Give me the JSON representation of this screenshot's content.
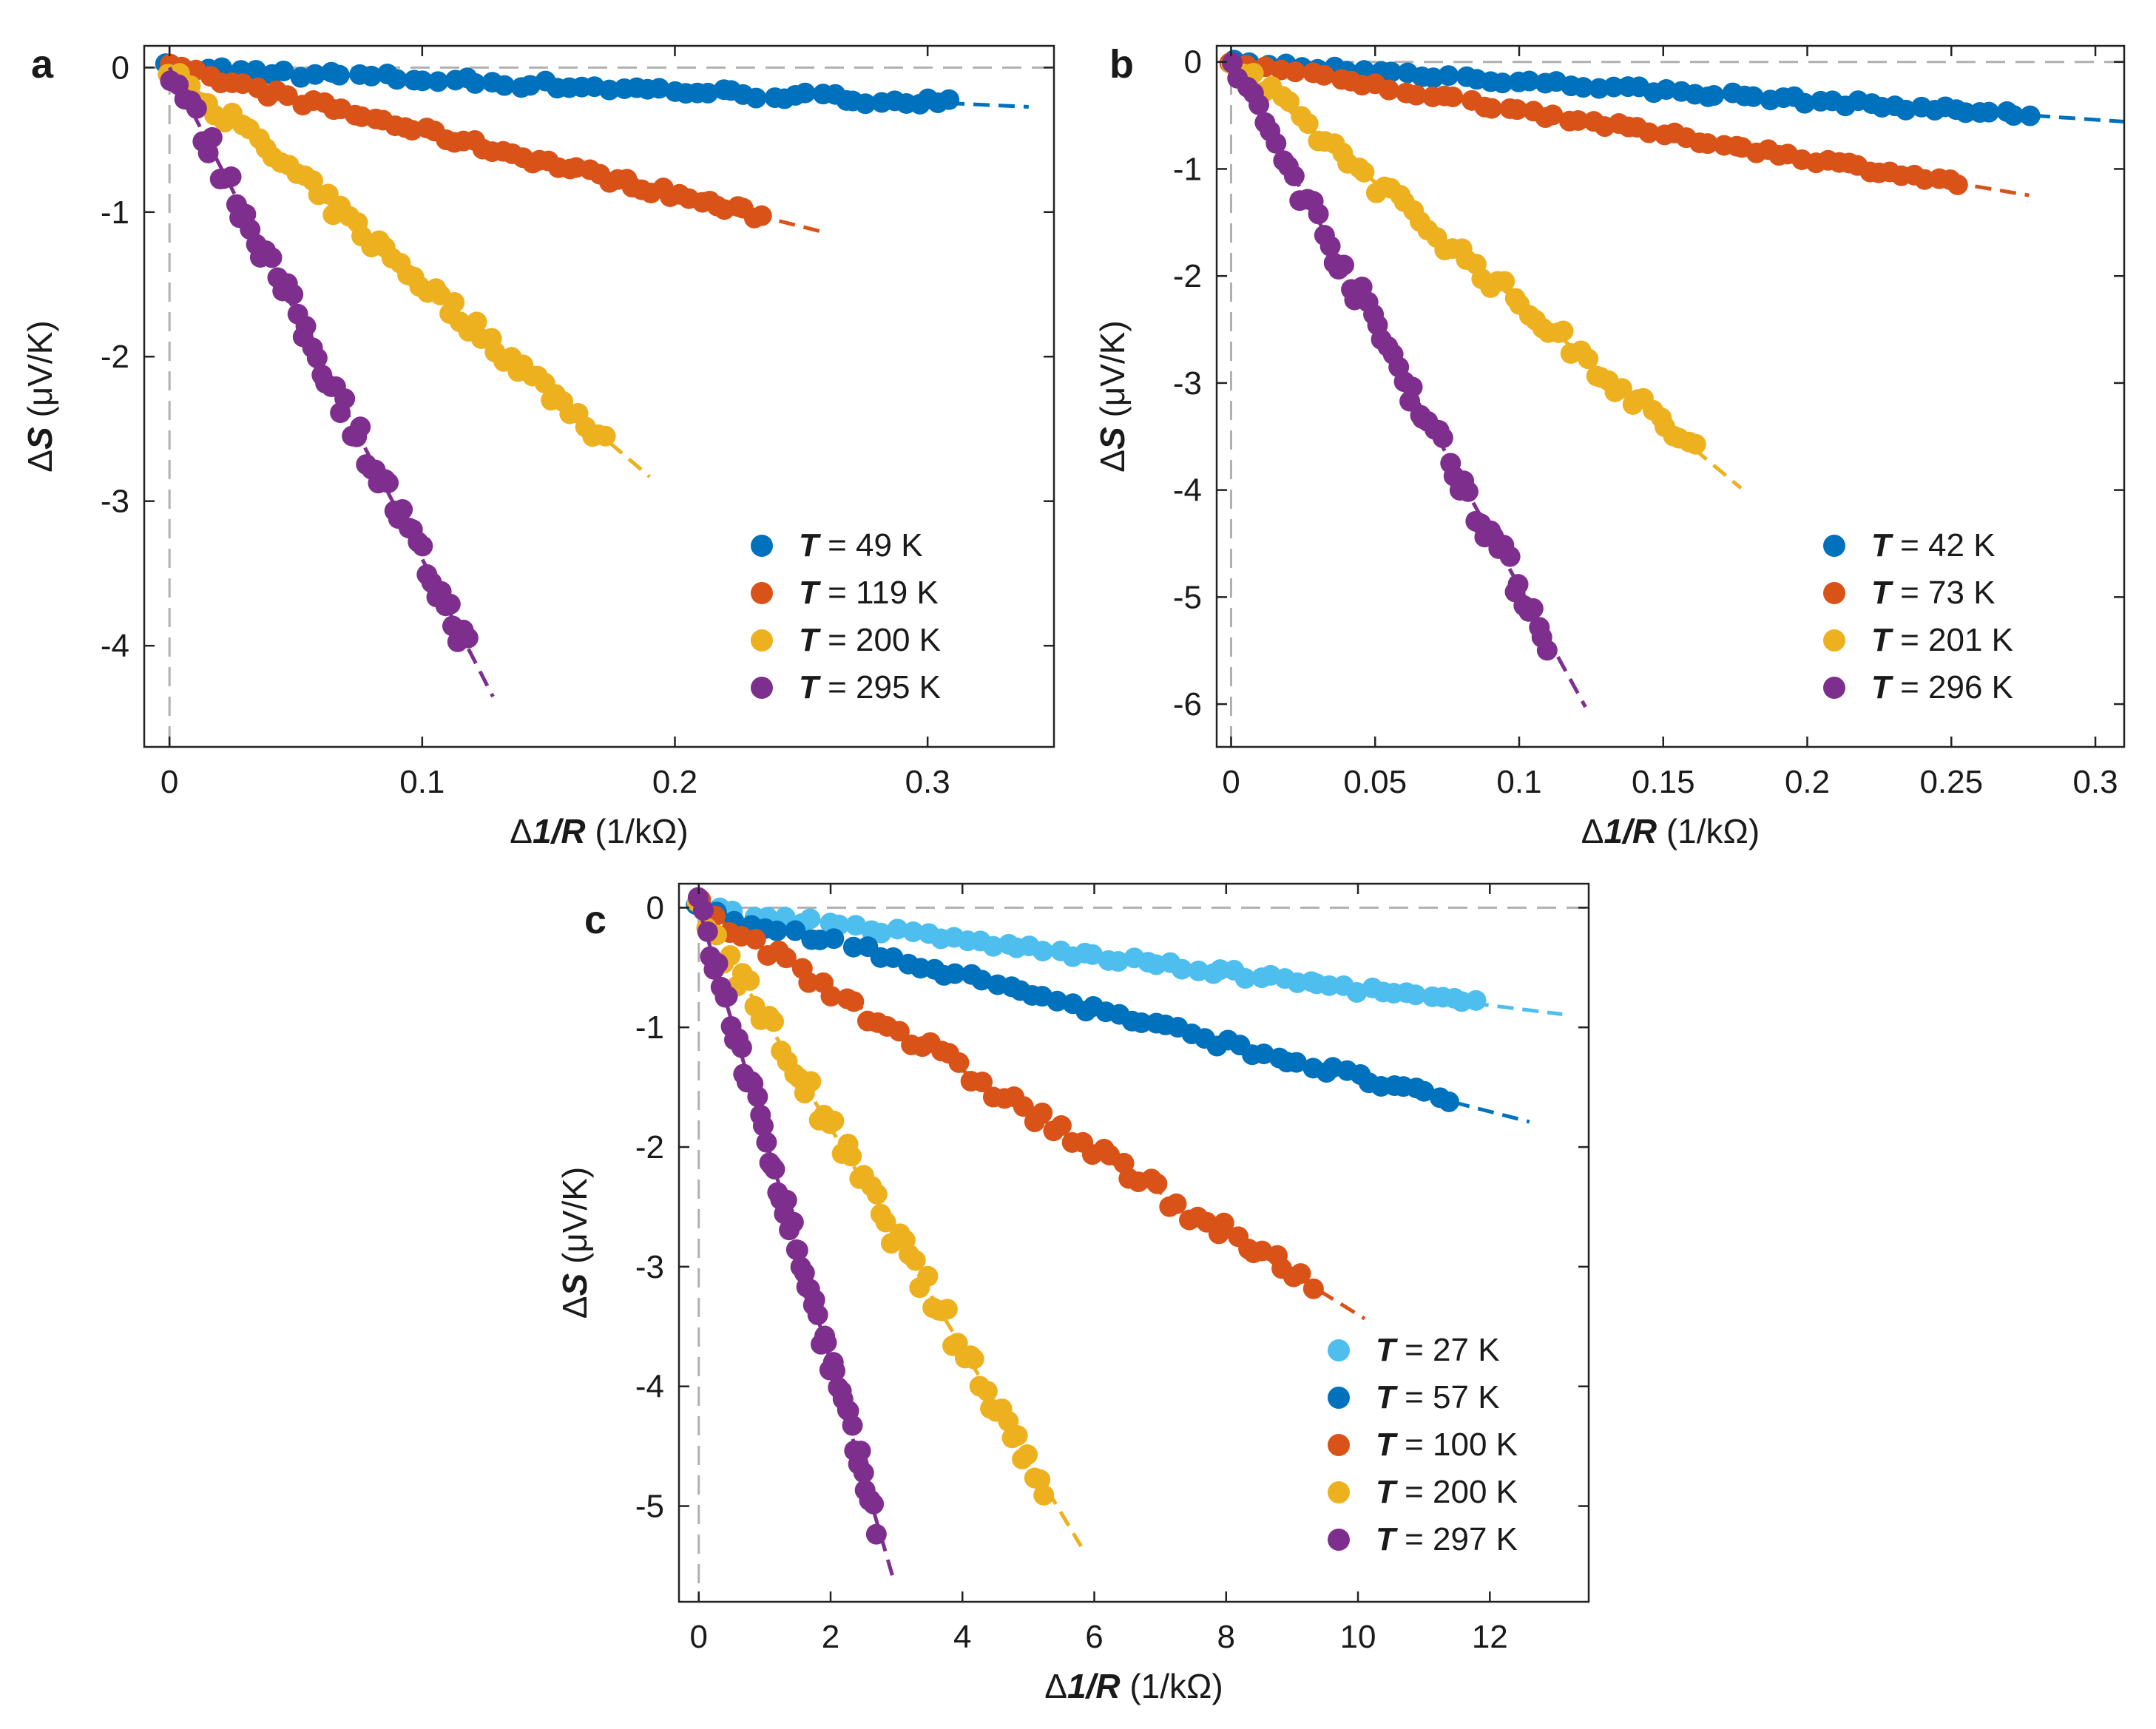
{
  "colors": {
    "light_blue": "#4DBEEE",
    "blue": "#0072BD",
    "orange": "#D95319",
    "yellow": "#EDB120",
    "purple": "#7E2F8E",
    "ref_line": "#b0b0b0"
  },
  "chart_data": [
    {
      "panel": "a",
      "type": "scatter",
      "xlabel": {
        "prefix": "Δ",
        "bold": "1/R",
        "unit": " (1/kΩ)"
      },
      "ylabel": {
        "prefix": "Δ",
        "bold": "S",
        "unit": " (μV/K)"
      },
      "xlim": [
        -0.01,
        0.35
      ],
      "ylim": [
        -4.7,
        0.15
      ],
      "xticks": [
        0,
        0.1,
        0.2,
        0.3
      ],
      "xtick_labels": [
        "0",
        "0.1",
        "0.2",
        "0.3"
      ],
      "yticks": [
        0,
        -1,
        -2,
        -3,
        -4
      ],
      "ytick_labels": [
        "0",
        "-1",
        "-2",
        "-3",
        "-4"
      ],
      "series": [
        {
          "label": "= 49 K",
          "color_key": "blue",
          "slope": -0.8,
          "fit_xmax": 0.34,
          "xmax": 0.31
        },
        {
          "label": "= 119 K",
          "color_key": "orange",
          "slope": -4.4,
          "fit_xmax": 0.26,
          "xmax": 0.235
        },
        {
          "label": "= 200 K",
          "color_key": "yellow",
          "slope": -14.9,
          "fit_xmax": 0.19,
          "xmax": 0.172
        },
        {
          "label": "= 295 K",
          "color_key": "purple",
          "slope": -34.0,
          "fit_xmax": 0.128,
          "xmax": 0.118
        }
      ]
    },
    {
      "panel": "b",
      "type": "scatter",
      "xlabel": {
        "prefix": "Δ",
        "bold": "1/R",
        "unit": " (1/kΩ)"
      },
      "ylabel": {
        "prefix": "Δ",
        "bold": "S",
        "unit": " (μV/K)"
      },
      "xlim": [
        -0.005,
        0.31
      ],
      "ylim": [
        -6.4,
        0.15
      ],
      "xticks": [
        0,
        0.05,
        0.1,
        0.15,
        0.2,
        0.25,
        0.3
      ],
      "xtick_labels": [
        "0",
        "0.05",
        "0.1",
        "0.15",
        "0.2",
        "0.25",
        "0.3"
      ],
      "yticks": [
        0,
        -1,
        -2,
        -3,
        -4,
        -5,
        -6
      ],
      "ytick_labels": [
        "0",
        "-1",
        "-2",
        "-3",
        "-4",
        "-5",
        "-6"
      ],
      "series": [
        {
          "label": "= 42 K",
          "color_key": "blue",
          "slope": -1.8,
          "fit_xmax": 0.31,
          "xmax": 0.277
        },
        {
          "label": "= 73 K",
          "color_key": "orange",
          "slope": -4.5,
          "fit_xmax": 0.277,
          "xmax": 0.253
        },
        {
          "label": "= 201 K",
          "color_key": "yellow",
          "slope": -22.5,
          "fit_xmax": 0.177,
          "xmax": 0.161
        },
        {
          "label": "= 296 K",
          "color_key": "purple",
          "slope": -49.0,
          "fit_xmax": 0.123,
          "xmax": 0.11
        }
      ]
    },
    {
      "panel": "c",
      "type": "scatter",
      "xlabel": {
        "prefix": "Δ",
        "bold": "1/R",
        "unit": " (1/kΩ)"
      },
      "ylabel": {
        "prefix": "Δ",
        "bold": "S",
        "unit": " (μV/K)"
      },
      "xlim": [
        -0.3,
        13.5
      ],
      "ylim": [
        -5.8,
        0.2
      ],
      "xticks": [
        0,
        2,
        4,
        6,
        8,
        10,
        12
      ],
      "xtick_labels": [
        "0",
        "2",
        "4",
        "6",
        "8",
        "10",
        "12"
      ],
      "yticks": [
        0,
        -1,
        -2,
        -3,
        -4,
        -5
      ],
      "ytick_labels": [
        "0",
        "-1",
        "-2",
        "-3",
        "-4",
        "-5"
      ],
      "series": [
        {
          "label": "= 27 K",
          "color_key": "light_blue",
          "slope": -0.068,
          "fit_xmax": 13.1,
          "xmax": 11.8
        },
        {
          "label": "= 57 K",
          "color_key": "blue",
          "slope": -0.142,
          "fit_xmax": 12.6,
          "xmax": 11.4
        },
        {
          "label": "= 100 K",
          "color_key": "orange",
          "slope": -0.34,
          "fit_xmax": 10.1,
          "xmax": 9.3
        },
        {
          "label": "= 200 K",
          "color_key": "yellow",
          "slope": -0.92,
          "fit_xmax": 5.8,
          "xmax": 5.25
        },
        {
          "label": "= 297 K",
          "color_key": "purple",
          "slope": -1.9,
          "fit_xmax": 2.95,
          "xmax": 2.7
        }
      ]
    }
  ],
  "legend_var": "T"
}
